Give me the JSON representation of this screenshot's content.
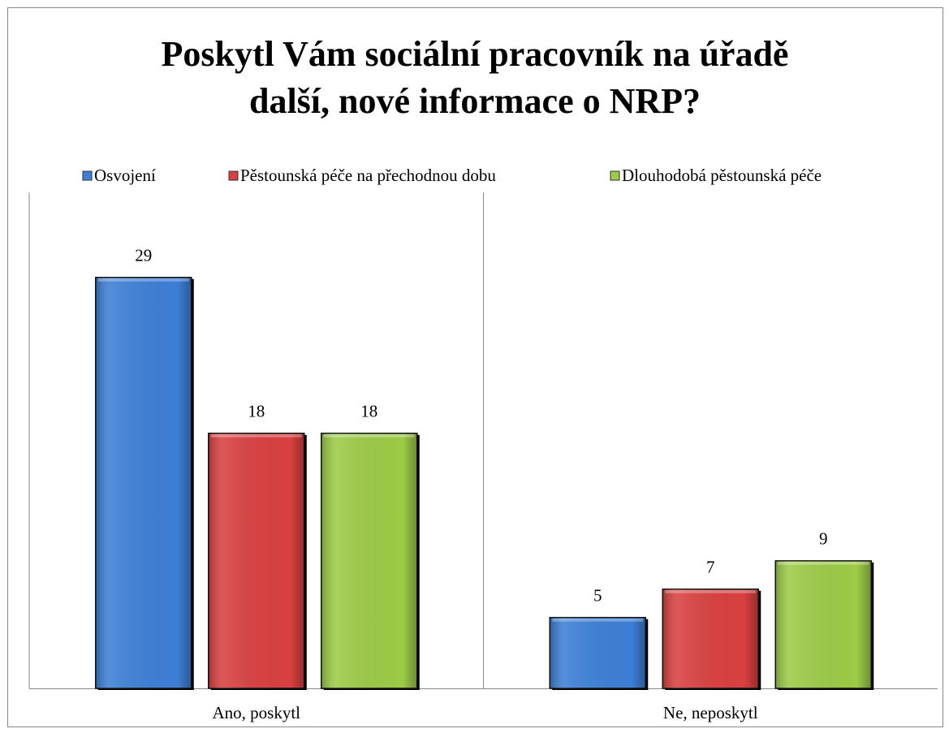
{
  "chart_data": {
    "type": "bar",
    "title": "Poskytl Vám sociální pracovník na úřadě další, nové informace o NRP?",
    "categories": [
      "Ano, poskytl",
      "Ne, neposkytl"
    ],
    "series": [
      {
        "name": "Osvojení",
        "color": "#3d7fd6",
        "values": [
          29,
          5
        ]
      },
      {
        "name": "Pěstounská péče na přechodnou dobu",
        "color": "#d94040",
        "values": [
          18,
          7
        ]
      },
      {
        "name": "Dlouhodobá pěstounská péče",
        "color": "#9ccb47",
        "values": [
          18,
          9
        ]
      }
    ],
    "ylim": [
      0,
      35
    ],
    "legend": "top"
  }
}
